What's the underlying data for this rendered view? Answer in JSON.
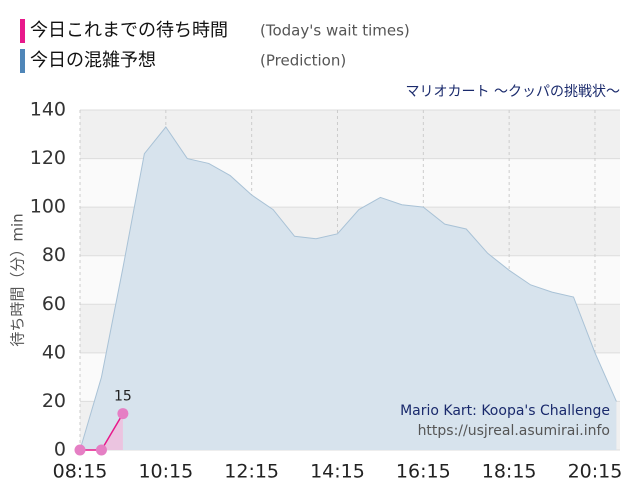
{
  "chart_data": {
    "type": "area",
    "subtitle": "マリオカート ～クッパの挑戦状～",
    "y_label": "待ち時間（分）min",
    "annotations": [
      "Mario Kart: Koopa's Challenge",
      "https://usjreal.asumirai.info"
    ],
    "xlim": [
      495,
      1250
    ],
    "xticks": [
      {
        "value": 495,
        "label": "08:15"
      },
      {
        "value": 615,
        "label": "10:15"
      },
      {
        "value": 735,
        "label": "12:15"
      },
      {
        "value": 855,
        "label": "14:15"
      },
      {
        "value": 975,
        "label": "16:15"
      },
      {
        "value": 1095,
        "label": "18:15"
      },
      {
        "value": 1215,
        "label": "20:15"
      }
    ],
    "ylim": [
      0,
      140
    ],
    "yticks": [
      0,
      20,
      40,
      60,
      80,
      100,
      120,
      140
    ],
    "grid": true,
    "series": [
      {
        "name": "今日の混雑予想",
        "legend_note": "(Prediction)",
        "color": "#4f86b8",
        "x": [
          495,
          525,
          555,
          585,
          615,
          645,
          675,
          705,
          735,
          765,
          795,
          825,
          855,
          885,
          915,
          945,
          975,
          1005,
          1035,
          1065,
          1095,
          1125,
          1155,
          1185,
          1215,
          1245
        ],
        "values": [
          0,
          30,
          75,
          122,
          133,
          120,
          118,
          113,
          105,
          99,
          88,
          87,
          89,
          99,
          104,
          101,
          100,
          93,
          91,
          81,
          74,
          68,
          65,
          63,
          40,
          20
        ]
      },
      {
        "name": "今日これまでの待ち時間",
        "legend_note": "(Today's wait times)",
        "color": "#e8198b",
        "x": [
          495,
          525,
          555
        ],
        "values": [
          0,
          0,
          15
        ]
      }
    ]
  }
}
